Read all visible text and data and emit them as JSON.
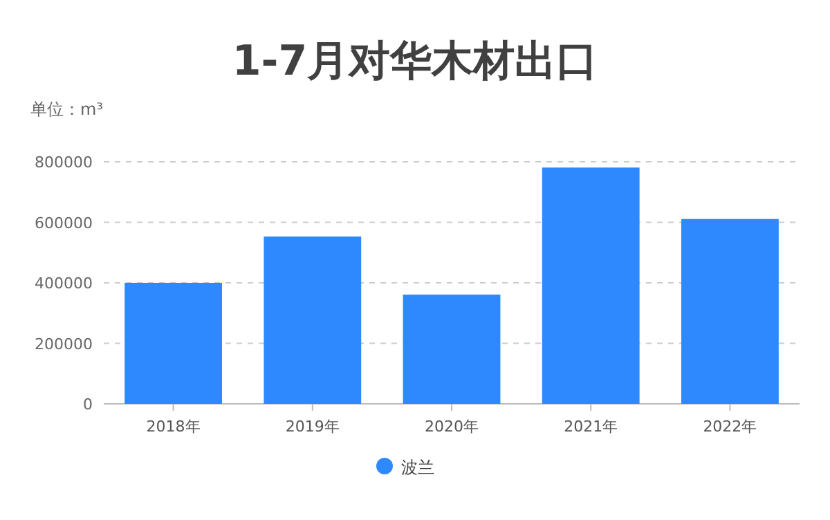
{
  "chart_data": {
    "type": "bar",
    "title": "1-7月对华木材出口",
    "subtitle": "单位：m³",
    "categories": [
      "2018年",
      "2019年",
      "2020年",
      "2021年",
      "2022年"
    ],
    "series": [
      {
        "name": "波兰",
        "color": "#2e89ff",
        "values": [
          400000,
          553000,
          361000,
          781000,
          611000
        ]
      }
    ],
    "ylim": [
      0,
      800000
    ],
    "yticks": [
      0,
      200000,
      400000,
      600000,
      800000
    ],
    "grid": "y",
    "legend": "bottom"
  }
}
